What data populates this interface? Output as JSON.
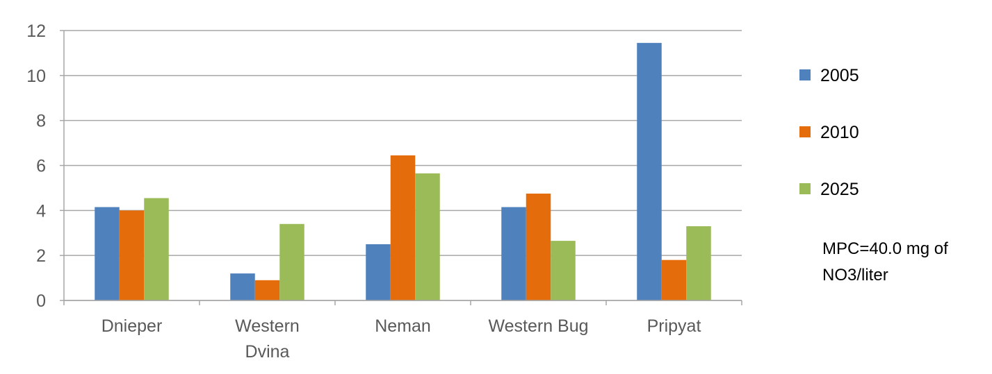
{
  "chart_data": {
    "type": "bar",
    "title": "",
    "xlabel": "",
    "ylabel": "",
    "ylim": [
      0,
      12
    ],
    "yticks": [
      "0",
      "2",
      "4",
      "6",
      "8",
      "10",
      "12"
    ],
    "grid": true,
    "legend_position": "right",
    "categories": [
      "Dnieper",
      "Western Dvina",
      "Neman",
      "Western Bug",
      "Pripyat"
    ],
    "series": [
      {
        "name": "2005",
        "color": "#4f81bd",
        "values": [
          4.15,
          1.2,
          2.5,
          4.15,
          11.45
        ]
      },
      {
        "name": "2010",
        "color": "#e46c0a",
        "values": [
          4.0,
          0.9,
          6.45,
          4.75,
          1.8
        ]
      },
      {
        "name": "2025",
        "color": "#9bbb59",
        "values": [
          4.55,
          3.4,
          5.65,
          2.65,
          3.3
        ]
      }
    ],
    "annotation": [
      "MPC=40.0 mg of",
      "NO3/liter"
    ]
  }
}
